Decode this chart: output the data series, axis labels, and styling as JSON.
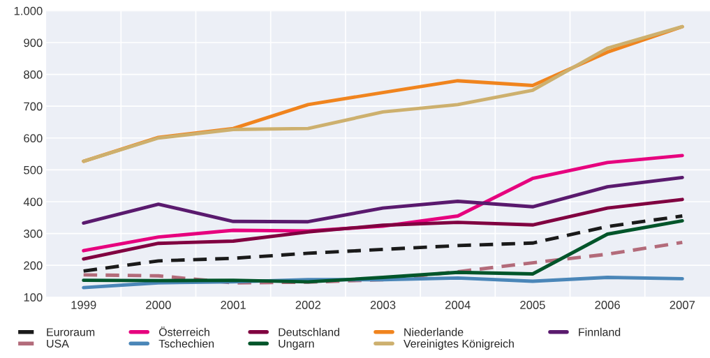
{
  "chart_data": {
    "type": "line",
    "categories": [
      "1999",
      "2000",
      "2001",
      "2002",
      "2003",
      "2004",
      "2005",
      "2006",
      "2007"
    ],
    "series": [
      {
        "name": "Euroraum",
        "color": "#1a1a1a",
        "line_style": "dashed",
        "values": [
          182,
          214,
          222,
          238,
          250,
          262,
          270,
          322,
          355
        ]
      },
      {
        "name": "Österreich",
        "color": "#e6007e",
        "values": [
          246,
          289,
          310,
          308,
          323,
          355,
          473,
          523,
          545
        ]
      },
      {
        "name": "Deutschland",
        "color": "#800040",
        "values": [
          220,
          269,
          276,
          305,
          326,
          335,
          327,
          380,
          407
        ]
      },
      {
        "name": "Niederlande",
        "color": "#f0841e",
        "values": [
          527,
          602,
          630,
          705,
          743,
          780,
          765,
          870,
          950
        ]
      },
      {
        "name": "Finnland",
        "color": "#5a1a6e",
        "values": [
          333,
          392,
          338,
          337,
          380,
          401,
          384,
          447,
          476
        ]
      },
      {
        "name": "USA",
        "color": "#b36b7a",
        "line_style": "dashed",
        "values": [
          170,
          167,
          145,
          147,
          155,
          180,
          208,
          235,
          272
        ]
      },
      {
        "name": "Tschechien",
        "color": "#4a86b8",
        "values": [
          130,
          145,
          148,
          155,
          155,
          160,
          150,
          162,
          158
        ]
      },
      {
        "name": "Ungarn",
        "color": "#00552a",
        "values": [
          153,
          152,
          153,
          148,
          162,
          178,
          173,
          298,
          340
        ]
      },
      {
        "name": "Vereinigtes Königreich",
        "color": "#cdb06e",
        "values": [
          527,
          600,
          627,
          630,
          682,
          705,
          750,
          882,
          950
        ]
      }
    ],
    "ylim": [
      100,
      1000
    ],
    "yticks": [
      100,
      200,
      300,
      400,
      500,
      600,
      700,
      800,
      900,
      {
        "value": 1000,
        "label": "1.000"
      }
    ],
    "grid": true,
    "legend": "bottom",
    "line_style": "solid",
    "marker": "none"
  }
}
